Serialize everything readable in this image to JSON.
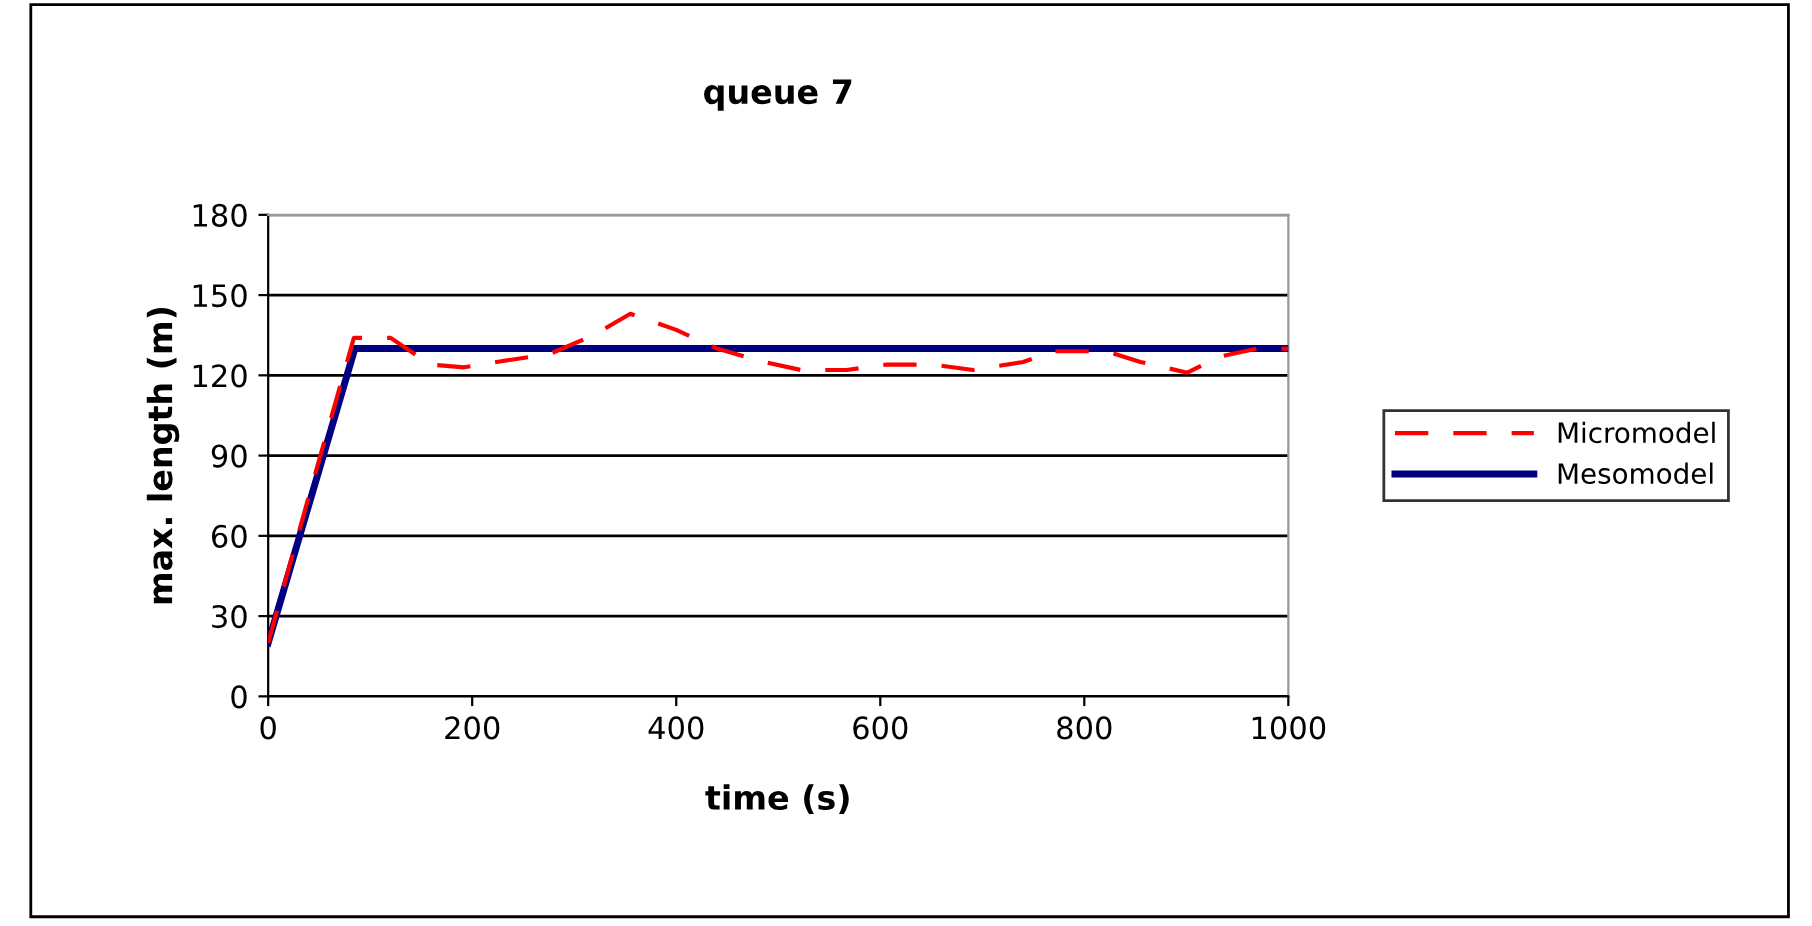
{
  "chart_data": {
    "type": "line",
    "title": "queue 7",
    "xlabel": "time (s)",
    "ylabel": "max. length (m)",
    "xlim": [
      0,
      1000
    ],
    "xticks": [
      0,
      200,
      400,
      600,
      800,
      1000
    ],
    "ylim": [
      0,
      180
    ],
    "yticks": [
      0,
      30,
      60,
      90,
      120,
      150,
      180
    ],
    "grid": "y",
    "legend": "right",
    "marker": "none",
    "series": [
      {
        "name": "Micromodel",
        "color": "#ff0000",
        "line_style": "dashed",
        "x": [
          0,
          40,
          84,
          120,
          159,
          192,
          224,
          276,
          319,
          355,
          400,
          440,
          486,
          522,
          567,
          606,
          652,
          691,
          740,
          770,
          822,
          855,
          901,
          933,
          969,
          1000
        ],
        "values": [
          20,
          75,
          134,
          134,
          124,
          123,
          125,
          128,
          135,
          143,
          137,
          130,
          125,
          122,
          122,
          124,
          124,
          122,
          125,
          129,
          129,
          125,
          121,
          127,
          130,
          130
        ]
      },
      {
        "name": "Mesomodel",
        "color": "#000080",
        "line_style": "solid",
        "x": [
          0,
          85,
          1000
        ],
        "values": [
          20,
          130,
          130
        ]
      }
    ]
  }
}
